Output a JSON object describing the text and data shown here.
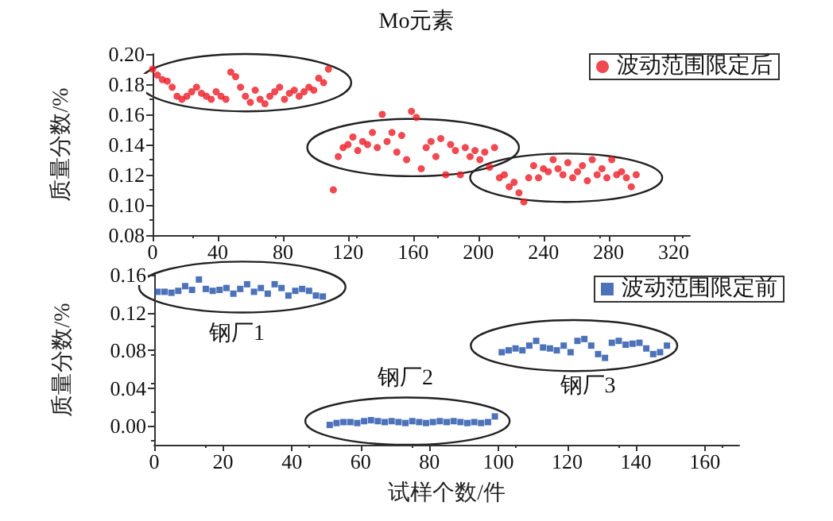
{
  "chart_data": [
    {
      "type": "scatter",
      "title": "Mo元素",
      "ylabel": "质量分数/%",
      "legend": "top right",
      "marker": "circle",
      "grid": false,
      "xlim": [
        0,
        330
      ],
      "xticks": [
        0,
        40,
        80,
        120,
        160,
        200,
        240,
        280,
        320
      ],
      "ylim": [
        0.08,
        0.2
      ],
      "yticks": [
        {
          "value": 0.08,
          "label": "0.08"
        },
        {
          "value": 0.1,
          "label": "0.10"
        },
        {
          "value": 0.12,
          "label": "0.12"
        },
        {
          "value": 0.14,
          "label": "0.14"
        },
        {
          "value": 0.16,
          "label": "0.16"
        },
        {
          "value": 0.18,
          "label": "0.18"
        },
        {
          "value": 0.2,
          "label": "0.20"
        }
      ],
      "series": [
        {
          "name": "波动范围限定后",
          "color": "#ee1c25",
          "x": [
            0,
            3,
            6,
            9,
            12,
            15,
            18,
            21,
            24,
            27,
            30,
            33,
            36,
            39,
            42,
            45,
            48,
            51,
            54,
            57,
            60,
            63,
            66,
            69,
            72,
            75,
            78,
            81,
            84,
            87,
            90,
            93,
            96,
            99,
            102,
            105,
            108,
            111,
            114,
            117,
            120,
            123,
            126,
            129,
            132,
            135,
            138,
            141,
            144,
            147,
            150,
            153,
            156,
            159,
            162,
            165,
            168,
            171,
            174,
            177,
            180,
            183,
            186,
            189,
            192,
            195,
            198,
            201,
            204,
            207,
            210,
            213,
            216,
            219,
            222,
            225,
            228,
            231,
            234,
            237,
            240,
            243,
            246,
            249,
            252,
            255,
            258,
            261,
            264,
            267,
            270,
            273,
            276,
            279,
            282,
            285,
            288,
            291,
            294,
            297
          ],
          "values": [
            0.19,
            0.186,
            0.183,
            0.182,
            0.178,
            0.172,
            0.17,
            0.172,
            0.175,
            0.178,
            0.174,
            0.172,
            0.17,
            0.175,
            0.172,
            0.17,
            0.188,
            0.185,
            0.178,
            0.172,
            0.168,
            0.176,
            0.17,
            0.167,
            0.172,
            0.175,
            0.178,
            0.17,
            0.174,
            0.176,
            0.172,
            0.175,
            0.178,
            0.176,
            0.184,
            0.181,
            0.19,
            0.11,
            0.132,
            0.138,
            0.14,
            0.145,
            0.136,
            0.142,
            0.14,
            0.148,
            0.138,
            0.16,
            0.142,
            0.148,
            0.135,
            0.146,
            0.13,
            0.162,
            0.158,
            0.124,
            0.138,
            0.142,
            0.132,
            0.144,
            0.12,
            0.14,
            0.136,
            0.12,
            0.138,
            0.132,
            0.136,
            0.13,
            0.135,
            0.125,
            0.138,
            0.118,
            0.12,
            0.112,
            0.115,
            0.108,
            0.102,
            0.118,
            0.126,
            0.118,
            0.124,
            0.122,
            0.13,
            0.124,
            0.12,
            0.128,
            0.118,
            0.122,
            0.126,
            0.116,
            0.13,
            0.12,
            0.124,
            0.118,
            0.13,
            0.12,
            0.122,
            0.118,
            0.112,
            0.12
          ]
        }
      ]
    },
    {
      "type": "scatter",
      "xlabel": "试样个数/件",
      "ylabel": "质量分数/%",
      "legend": "top right",
      "marker": "square",
      "grid": false,
      "xlim": [
        0,
        170
      ],
      "xticks": [
        0,
        20,
        40,
        60,
        80,
        100,
        120,
        140,
        160
      ],
      "ylim": [
        -0.02,
        0.16
      ],
      "yticks": [
        {
          "value": 0,
          "label": "0.00"
        },
        {
          "value": 0.04,
          "label": "0.04"
        },
        {
          "value": 0.08,
          "label": "0.08"
        },
        {
          "value": 0.12,
          "label": "0.12"
        },
        {
          "value": 0.16,
          "label": "0.16"
        }
      ],
      "annotations": [
        "钢厂1",
        "钢厂2",
        "钢厂3"
      ],
      "series": [
        {
          "name": "波动范围限定前",
          "color": "#1f4fa8",
          "x": [
            1,
            3,
            5,
            7,
            9,
            11,
            13,
            15,
            17,
            19,
            21,
            23,
            25,
            27,
            29,
            31,
            33,
            35,
            37,
            39,
            41,
            43,
            45,
            47,
            49,
            51,
            53,
            55,
            57,
            59,
            61,
            63,
            65,
            67,
            69,
            71,
            73,
            75,
            77,
            79,
            81,
            83,
            85,
            87,
            89,
            91,
            93,
            95,
            97,
            99,
            101,
            103,
            105,
            107,
            109,
            111,
            113,
            115,
            117,
            119,
            121,
            123,
            125,
            127,
            129,
            131,
            133,
            135,
            137,
            139,
            141,
            143,
            145,
            147,
            149
          ],
          "values": [
            0.142,
            0.142,
            0.141,
            0.143,
            0.148,
            0.144,
            0.155,
            0.145,
            0.143,
            0.144,
            0.146,
            0.14,
            0.145,
            0.15,
            0.142,
            0.146,
            0.14,
            0.15,
            0.146,
            0.138,
            0.143,
            0.145,
            0.143,
            0.138,
            0.137,
            0.001,
            0.003,
            0.004,
            0.004,
            0.003,
            0.005,
            0.006,
            0.005,
            0.004,
            0.005,
            0.004,
            0.003,
            0.005,
            0.004,
            0.003,
            0.004,
            0.005,
            0.004,
            0.005,
            0.004,
            0.003,
            0.004,
            0.003,
            0.004,
            0.01,
            0.078,
            0.08,
            0.082,
            0.08,
            0.085,
            0.09,
            0.083,
            0.082,
            0.08,
            0.085,
            0.078,
            0.09,
            0.092,
            0.085,
            0.076,
            0.072,
            0.088,
            0.09,
            0.086,
            0.087,
            0.088,
            0.082,
            0.076,
            0.078,
            0.085
          ]
        }
      ]
    }
  ]
}
